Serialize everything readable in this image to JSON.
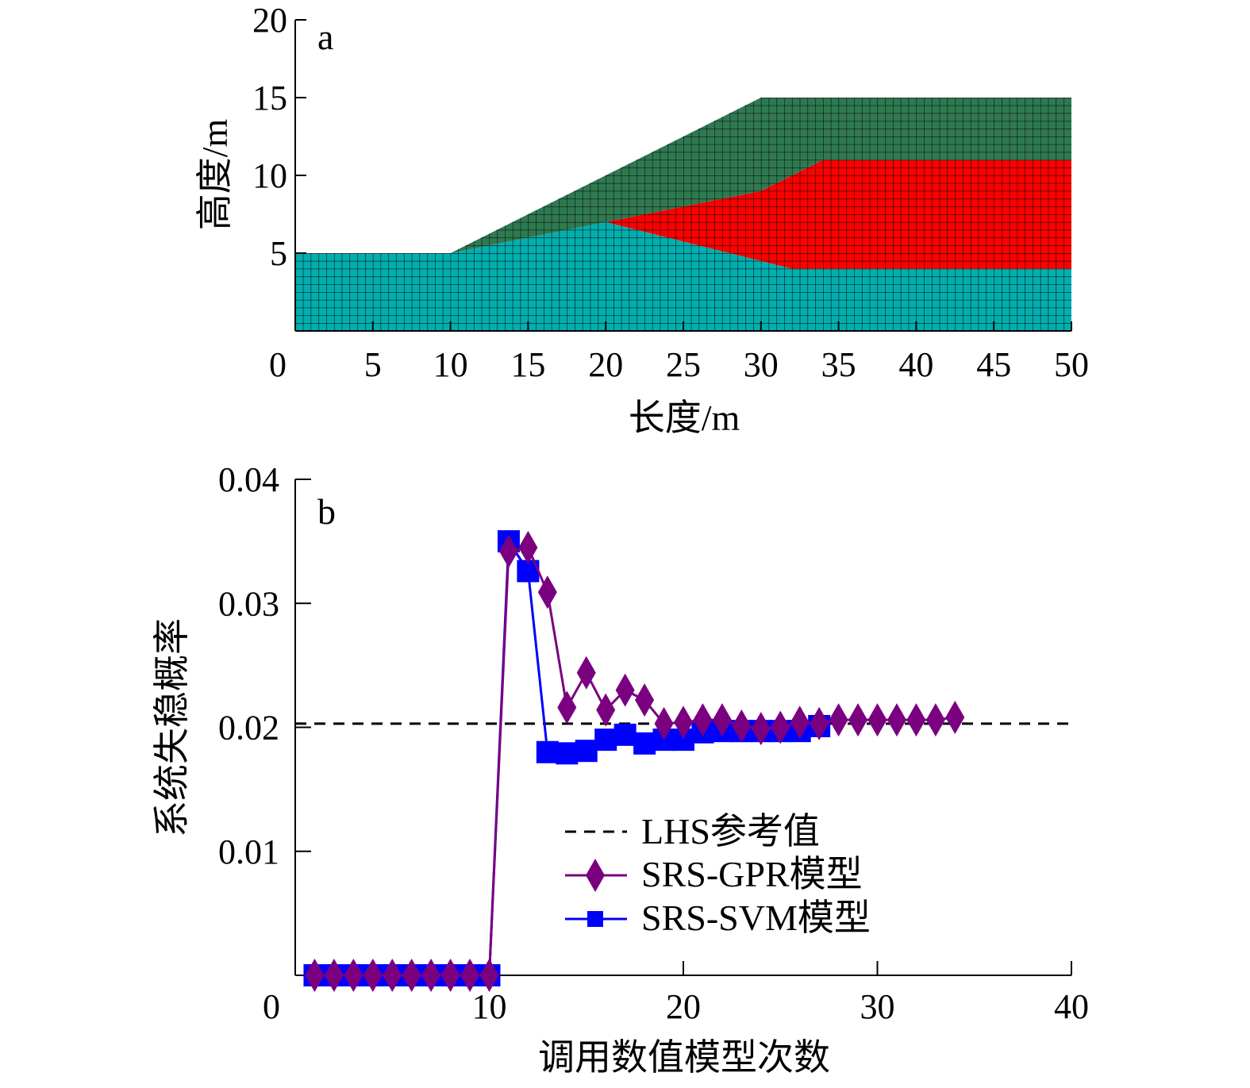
{
  "colors": {
    "upper_layer": "#2e7a50",
    "middle_layer": "#ff0000",
    "lower_layer": "#00b0b0",
    "gpr": "#7a0080",
    "svm": "#0000ff",
    "lhs": "#000000"
  },
  "chart_data": [
    {
      "type": "area",
      "panel_label": "a",
      "title": "",
      "xlabel": "长度/m",
      "ylabel": "高度/m",
      "xlim": [
        0,
        50
      ],
      "ylim": [
        0,
        20
      ],
      "xticks": [
        "0",
        "5",
        "10",
        "15",
        "20",
        "25",
        "30",
        "35",
        "40",
        "45",
        "50"
      ],
      "yticks": [
        "5",
        "10",
        "15",
        "20"
      ],
      "regions": [
        {
          "name": "lower-layer",
          "color_key": "lower_layer",
          "points": [
            [
              0,
              0
            ],
            [
              50,
              0
            ],
            [
              50,
              4
            ],
            [
              32,
              4
            ],
            [
              20,
              7
            ],
            [
              10,
              5
            ],
            [
              0,
              5
            ]
          ]
        },
        {
          "name": "middle-layer",
          "color_key": "middle_layer",
          "points": [
            [
              20,
              7
            ],
            [
              32,
              4
            ],
            [
              50,
              4
            ],
            [
              50,
              11
            ],
            [
              34,
              11
            ],
            [
              30,
              9
            ]
          ]
        },
        {
          "name": "upper-layer",
          "color_key": "upper_layer",
          "points": [
            [
              10,
              5
            ],
            [
              20,
              7
            ],
            [
              30,
              9
            ],
            [
              34,
              11
            ],
            [
              50,
              11
            ],
            [
              50,
              15
            ],
            [
              30,
              15
            ]
          ]
        }
      ]
    },
    {
      "type": "line",
      "panel_label": "b",
      "title": "",
      "xlabel": "调用数值模型次数",
      "ylabel": "系统失稳概率",
      "xlim": [
        0,
        40
      ],
      "ylim": [
        0,
        0.04
      ],
      "xticks": [
        "0",
        "10",
        "20",
        "30",
        "40"
      ],
      "yticks": [
        "0.01",
        "0.02",
        "0.03",
        "0.04"
      ],
      "legend_position": "lower-center",
      "reference": {
        "name": "LHS参考值",
        "value": 0.0203
      },
      "series": [
        {
          "name": "SRS-GPR模型",
          "marker": "diamond",
          "color_key": "gpr",
          "x": [
            1,
            2,
            3,
            4,
            5,
            6,
            7,
            8,
            9,
            10,
            11,
            12,
            13,
            14,
            15,
            16,
            17,
            18,
            19,
            20,
            21,
            22,
            23,
            24,
            25,
            26,
            27,
            28,
            29,
            30,
            31,
            32,
            33,
            34
          ],
          "values": [
            0,
            0,
            0,
            0,
            0,
            0,
            0,
            0,
            0,
            0,
            0.0342,
            0.0345,
            0.0309,
            0.0216,
            0.0244,
            0.0214,
            0.023,
            0.0222,
            0.0203,
            0.0204,
            0.0206,
            0.0206,
            0.0201,
            0.0199,
            0.02,
            0.0204,
            0.0203,
            0.0206,
            0.0206,
            0.0206,
            0.0206,
            0.0206,
            0.0206,
            0.0208
          ]
        },
        {
          "name": "SRS-SVM模型",
          "marker": "square",
          "color_key": "svm",
          "x": [
            1,
            2,
            3,
            4,
            5,
            6,
            7,
            8,
            9,
            10,
            11,
            12,
            13,
            14,
            15,
            16,
            17,
            18,
            19,
            20,
            21,
            22,
            23,
            24,
            25,
            26,
            27
          ],
          "values": [
            0,
            0,
            0,
            0,
            0,
            0,
            0,
            0,
            0,
            0,
            0.035,
            0.0326,
            0.018,
            0.0179,
            0.0181,
            0.019,
            0.0194,
            0.0187,
            0.019,
            0.019,
            0.0196,
            0.0197,
            0.0197,
            0.0197,
            0.0197,
            0.0197,
            0.0201
          ]
        }
      ]
    }
  ]
}
